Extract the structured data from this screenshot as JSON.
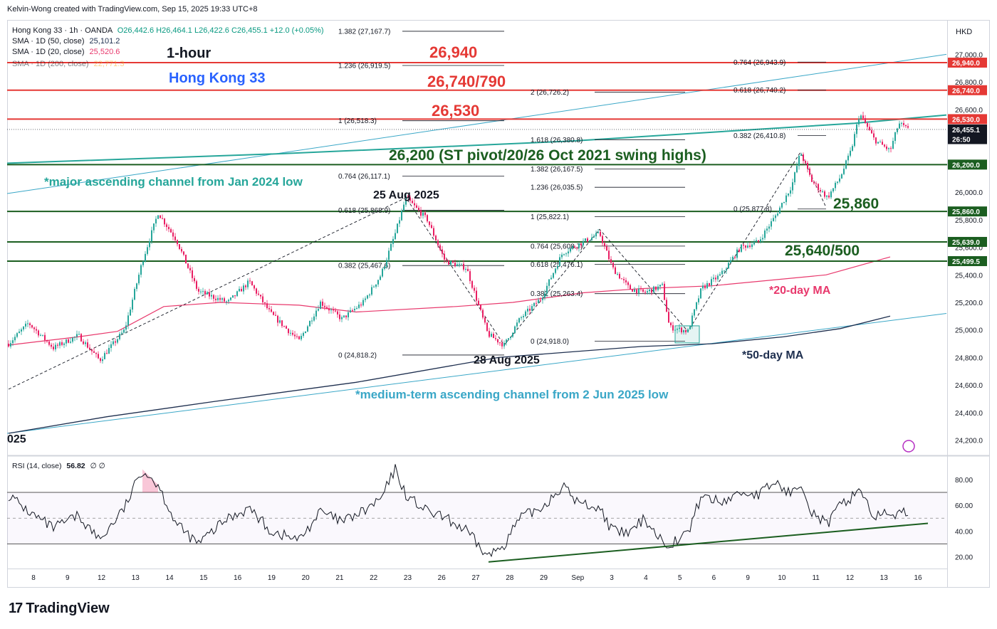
{
  "header": {
    "created_by": "Kelvin-Wong created with TradingView.com, Sep 15, 2025 19:33 UTC+8"
  },
  "legend": {
    "symbol": "Hong Kong 33 · 1h · OANDA",
    "ohlc": "O26,442.6  H26,464.1  L26,422.6  C26,455.1  +12.0 (+0.05%)",
    "sma50_label": "SMA · 1D (50, close)",
    "sma50_value": "25,101.2",
    "sma20_label": "SMA · 1D (20, close)",
    "sma20_value": "25,520.6",
    "sma200_label": "SMA · 1D (200, close)",
    "sma200_value": "22,771.3"
  },
  "currency": "HKD",
  "rsi": {
    "label": "RSI (14, close)",
    "value": "56.82",
    "extra": "∅ ∅"
  },
  "brand": "TradingView",
  "colors": {
    "up": "#26a69a",
    "down": "#e91e63",
    "resistance": "#e53935",
    "support": "#1b5e20",
    "ma20": "#e8386c",
    "ma50": "#1e2f4f",
    "channel": "#3aa7c7",
    "channel_major": "#26a69a"
  },
  "chart_data": {
    "type": "candlestick",
    "title": "1-hour Hong Kong 33",
    "x_ticks": [
      "8",
      "9",
      "12",
      "13",
      "14",
      "15",
      "16",
      "19",
      "20",
      "21",
      "22",
      "23",
      "26",
      "27",
      "28",
      "29",
      "Sep",
      "3",
      "4",
      "5",
      "6",
      "9",
      "10",
      "11",
      "12",
      "13",
      "16"
    ],
    "year_fragment": "025",
    "y_ticks": [
      "27,000.0",
      "26,800.0",
      "26,600.0",
      "26,400.0",
      "26,000.0",
      "25,800.0",
      "25,600.0",
      "25,400.0",
      "25,200.0",
      "25,000.0",
      "24,800.0",
      "24,600.0",
      "24,400.0",
      "24,200.0"
    ],
    "ylim": [
      24100,
      27250
    ],
    "price_labels": [
      {
        "text": "26,940.0",
        "value": 26940,
        "kind": "res"
      },
      {
        "text": "26,740.0",
        "value": 26740,
        "kind": "res"
      },
      {
        "text": "26,530.0",
        "value": 26530,
        "kind": "res"
      },
      {
        "text": "26,455.1",
        "value": 26455.1,
        "kind": "last"
      },
      {
        "text": "26:50",
        "value": 26385,
        "kind": "timer"
      },
      {
        "text": "26,200.0",
        "value": 26200,
        "kind": "sup"
      },
      {
        "text": "25,860.0",
        "value": 25860,
        "kind": "sup"
      },
      {
        "text": "25,639.0",
        "value": 25639,
        "kind": "sup"
      },
      {
        "text": "25,499.5",
        "value": 25499.5,
        "kind": "sup"
      }
    ],
    "levels": [
      {
        "value": 26940,
        "label": "26,940",
        "kind": "res"
      },
      {
        "value": 26740,
        "label": "26,740/790",
        "kind": "res"
      },
      {
        "value": 26530,
        "label": "26,530",
        "kind": "res"
      },
      {
        "value": 26200,
        "label": "26,200 (ST pivot/20/26 Oct 2021 swing highs)",
        "kind": "sup"
      },
      {
        "value": 25860,
        "label": "25,860",
        "kind": "sup"
      },
      {
        "value": 25639,
        "label": "25,640/500",
        "kind": "sup"
      },
      {
        "value": 25499.5,
        "label": "",
        "kind": "sup"
      }
    ],
    "fib_sets": [
      {
        "x0": 475,
        "x1": 708,
        "levels": [
          {
            "label": "1.382 (27,167.7)",
            "value": 27167.7
          },
          {
            "label": "1.236 (26,919.5)",
            "value": 26919.5
          },
          {
            "label": "1 (26,518.3)",
            "value": 26518.3
          },
          {
            "label": "0.764 (26,117.1)",
            "value": 26117.1
          },
          {
            "label": "0.618 (25,868.9)",
            "value": 25868.9
          },
          {
            "label": "0.382 (25,467.6)",
            "value": 25467.6
          },
          {
            "label": "0 (24,818.2)",
            "value": 24818.2
          }
        ]
      },
      {
        "x0": 745,
        "x1": 962,
        "levels": [
          {
            "label": "2 (26,726.2)",
            "value": 26726.2
          },
          {
            "label": "1.618 (26,380.8)",
            "value": 26380.8
          },
          {
            "label": "1.382 (26,167.5)",
            "value": 26167.5
          },
          {
            "label": "1.236 (26,035.5)",
            "value": 26035.5
          },
          {
            "label": "1 (25,822.1)",
            "value": 25822.1
          },
          {
            "label": "0.764 (25,608.7)",
            "value": 25608.7
          },
          {
            "label": "0.618 (25,476.1)",
            "value": 25476.1
          },
          {
            "label": "0.382 (25,263.4)",
            "value": 25263.4
          },
          {
            "label": "0 (24,918.0)",
            "value": 24918.0
          }
        ]
      },
      {
        "x0": 1030,
        "x1": 1160,
        "levels": [
          {
            "label": "0.764 (26,943.9)",
            "value": 26943.9
          },
          {
            "label": "0.618 (26,740.2)",
            "value": 26740.2
          },
          {
            "label": "0.382 (26,410.8)",
            "value": 26410.8
          },
          {
            "label": "0 (25,877.8)",
            "value": 25877.8
          }
        ]
      }
    ],
    "annotations": [
      {
        "text": "1-hour",
        "color": "#131722"
      },
      {
        "text": "Hong Kong 33",
        "color": "#2962ff"
      },
      {
        "text": "*major ascending channel from Jan 2024 low",
        "color": "#26a69a"
      },
      {
        "text": "25 Aug 2025",
        "color": "#131722"
      },
      {
        "text": "28 Aug 2025",
        "color": "#131722"
      },
      {
        "text": "*20-day MA",
        "color": "#e8386c"
      },
      {
        "text": "*50-day MA",
        "color": "#1e2f4f"
      },
      {
        "text": "*medium-term ascending channel from 2 Jun 2025 low",
        "color": "#3aa7c7"
      }
    ],
    "path": [
      [
        12,
        24900
      ],
      [
        40,
        25050
      ],
      [
        75,
        24870
      ],
      [
        110,
        24960
      ],
      [
        140,
        24780
      ],
      [
        175,
        25000
      ],
      [
        200,
        25500
      ],
      [
        222,
        25850
      ],
      [
        248,
        25650
      ],
      [
        278,
        25280
      ],
      [
        320,
        25200
      ],
      [
        350,
        25350
      ],
      [
        380,
        25120
      ],
      [
        420,
        24920
      ],
      [
        450,
        25200
      ],
      [
        480,
        25080
      ],
      [
        510,
        25200
      ],
      [
        535,
        25400
      ],
      [
        555,
        25700
      ],
      [
        570,
        25960
      ],
      [
        600,
        25800
      ],
      [
        625,
        25500
      ],
      [
        655,
        25450
      ],
      [
        685,
        24970
      ],
      [
        708,
        24890
      ],
      [
        730,
        25080
      ],
      [
        760,
        25230
      ],
      [
        790,
        25560
      ],
      [
        812,
        25620
      ],
      [
        842,
        25700
      ],
      [
        860,
        25450
      ],
      [
        884,
        25300
      ],
      [
        905,
        25270
      ],
      [
        930,
        25320
      ],
      [
        940,
        25020
      ],
      [
        966,
        24990
      ],
      [
        985,
        25300
      ],
      [
        1012,
        25400
      ],
      [
        1040,
        25600
      ],
      [
        1065,
        25640
      ],
      [
        1088,
        25820
      ],
      [
        1112,
        26050
      ],
      [
        1124,
        26290
      ],
      [
        1140,
        26080
      ],
      [
        1162,
        25960
      ],
      [
        1180,
        26110
      ],
      [
        1195,
        26300
      ],
      [
        1207,
        26570
      ],
      [
        1228,
        26380
      ],
      [
        1250,
        26300
      ],
      [
        1262,
        26500
      ],
      [
        1276,
        26450
      ]
    ],
    "ma20": [
      [
        12,
        24890
      ],
      [
        110,
        24950
      ],
      [
        165,
        24990
      ],
      [
        230,
        25170
      ],
      [
        310,
        25200
      ],
      [
        420,
        25180
      ],
      [
        500,
        25130
      ],
      [
        640,
        25170
      ],
      [
        720,
        25200
      ],
      [
        820,
        25270
      ],
      [
        900,
        25300
      ],
      [
        1000,
        25320
      ],
      [
        1160,
        25400
      ],
      [
        1250,
        25530
      ]
    ],
    "ma50": [
      [
        12,
        24250
      ],
      [
        150,
        24370
      ],
      [
        300,
        24480
      ],
      [
        500,
        24620
      ],
      [
        700,
        24800
      ],
      [
        900,
        24880
      ],
      [
        1000,
        24900
      ],
      [
        1100,
        24950
      ],
      [
        1180,
        25010
      ],
      [
        1250,
        25100
      ]
    ],
    "ch_major_lower": [
      [
        10,
        26210
      ],
      [
        400,
        26280
      ],
      [
        800,
        26370
      ],
      [
        1200,
        26500
      ],
      [
        1329,
        26560
      ]
    ],
    "ch_major_upper": [
      [
        10,
        25990
      ],
      [
        1329,
        27000
      ]
    ],
    "ch_medium_upper": [
      [
        10,
        24250
      ],
      [
        1329,
        25120
      ]
    ],
    "dashes": [
      [
        [
          12,
          24570
        ],
        [
          570,
          25960
        ],
        [
          708,
          24890
        ],
        [
          842,
          25730
        ],
        [
          966,
          24990
        ],
        [
          1124,
          26290
        ],
        [
          1160,
          25890
        ]
      ]
    ],
    "rsi_data": {
      "ylim": [
        12,
        96
      ],
      "ob": 70,
      "os": 30,
      "mid": 50,
      "ticks": [
        "80.00",
        "60.00",
        "40.00",
        "20.00"
      ],
      "values": [
        [
          12,
          68
        ],
        [
          40,
          55
        ],
        [
          75,
          42
        ],
        [
          110,
          52
        ],
        [
          140,
          33
        ],
        [
          175,
          58
        ],
        [
          200,
          88
        ],
        [
          222,
          76
        ],
        [
          248,
          45
        ],
        [
          278,
          30
        ],
        [
          320,
          50
        ],
        [
          350,
          58
        ],
        [
          380,
          40
        ],
        [
          420,
          33
        ],
        [
          450,
          55
        ],
        [
          480,
          47
        ],
        [
          510,
          55
        ],
        [
          535,
          65
        ],
        [
          555,
          88
        ],
        [
          570,
          68
        ],
        [
          600,
          55
        ],
        [
          625,
          50
        ],
        [
          655,
          40
        ],
        [
          685,
          20
        ],
        [
          708,
          30
        ],
        [
          730,
          50
        ],
        [
          760,
          58
        ],
        [
          790,
          75
        ],
        [
          812,
          62
        ],
        [
          842,
          58
        ],
        [
          860,
          40
        ],
        [
          884,
          38
        ],
        [
          905,
          50
        ],
        [
          930,
          32
        ],
        [
          940,
          30
        ],
        [
          966,
          38
        ],
        [
          985,
          68
        ],
        [
          1012,
          62
        ],
        [
          1040,
          70
        ],
        [
          1065,
          68
        ],
        [
          1088,
          78
        ],
        [
          1112,
          68
        ],
        [
          1124,
          80
        ],
        [
          1140,
          55
        ],
        [
          1162,
          45
        ],
        [
          1180,
          60
        ],
        [
          1195,
          66
        ],
        [
          1207,
          74
        ],
        [
          1228,
          50
        ],
        [
          1250,
          55
        ],
        [
          1262,
          52
        ],
        [
          1276,
          57
        ]
      ],
      "trendline": [
        [
          686,
          16
        ],
        [
          1303,
          46
        ]
      ]
    }
  }
}
